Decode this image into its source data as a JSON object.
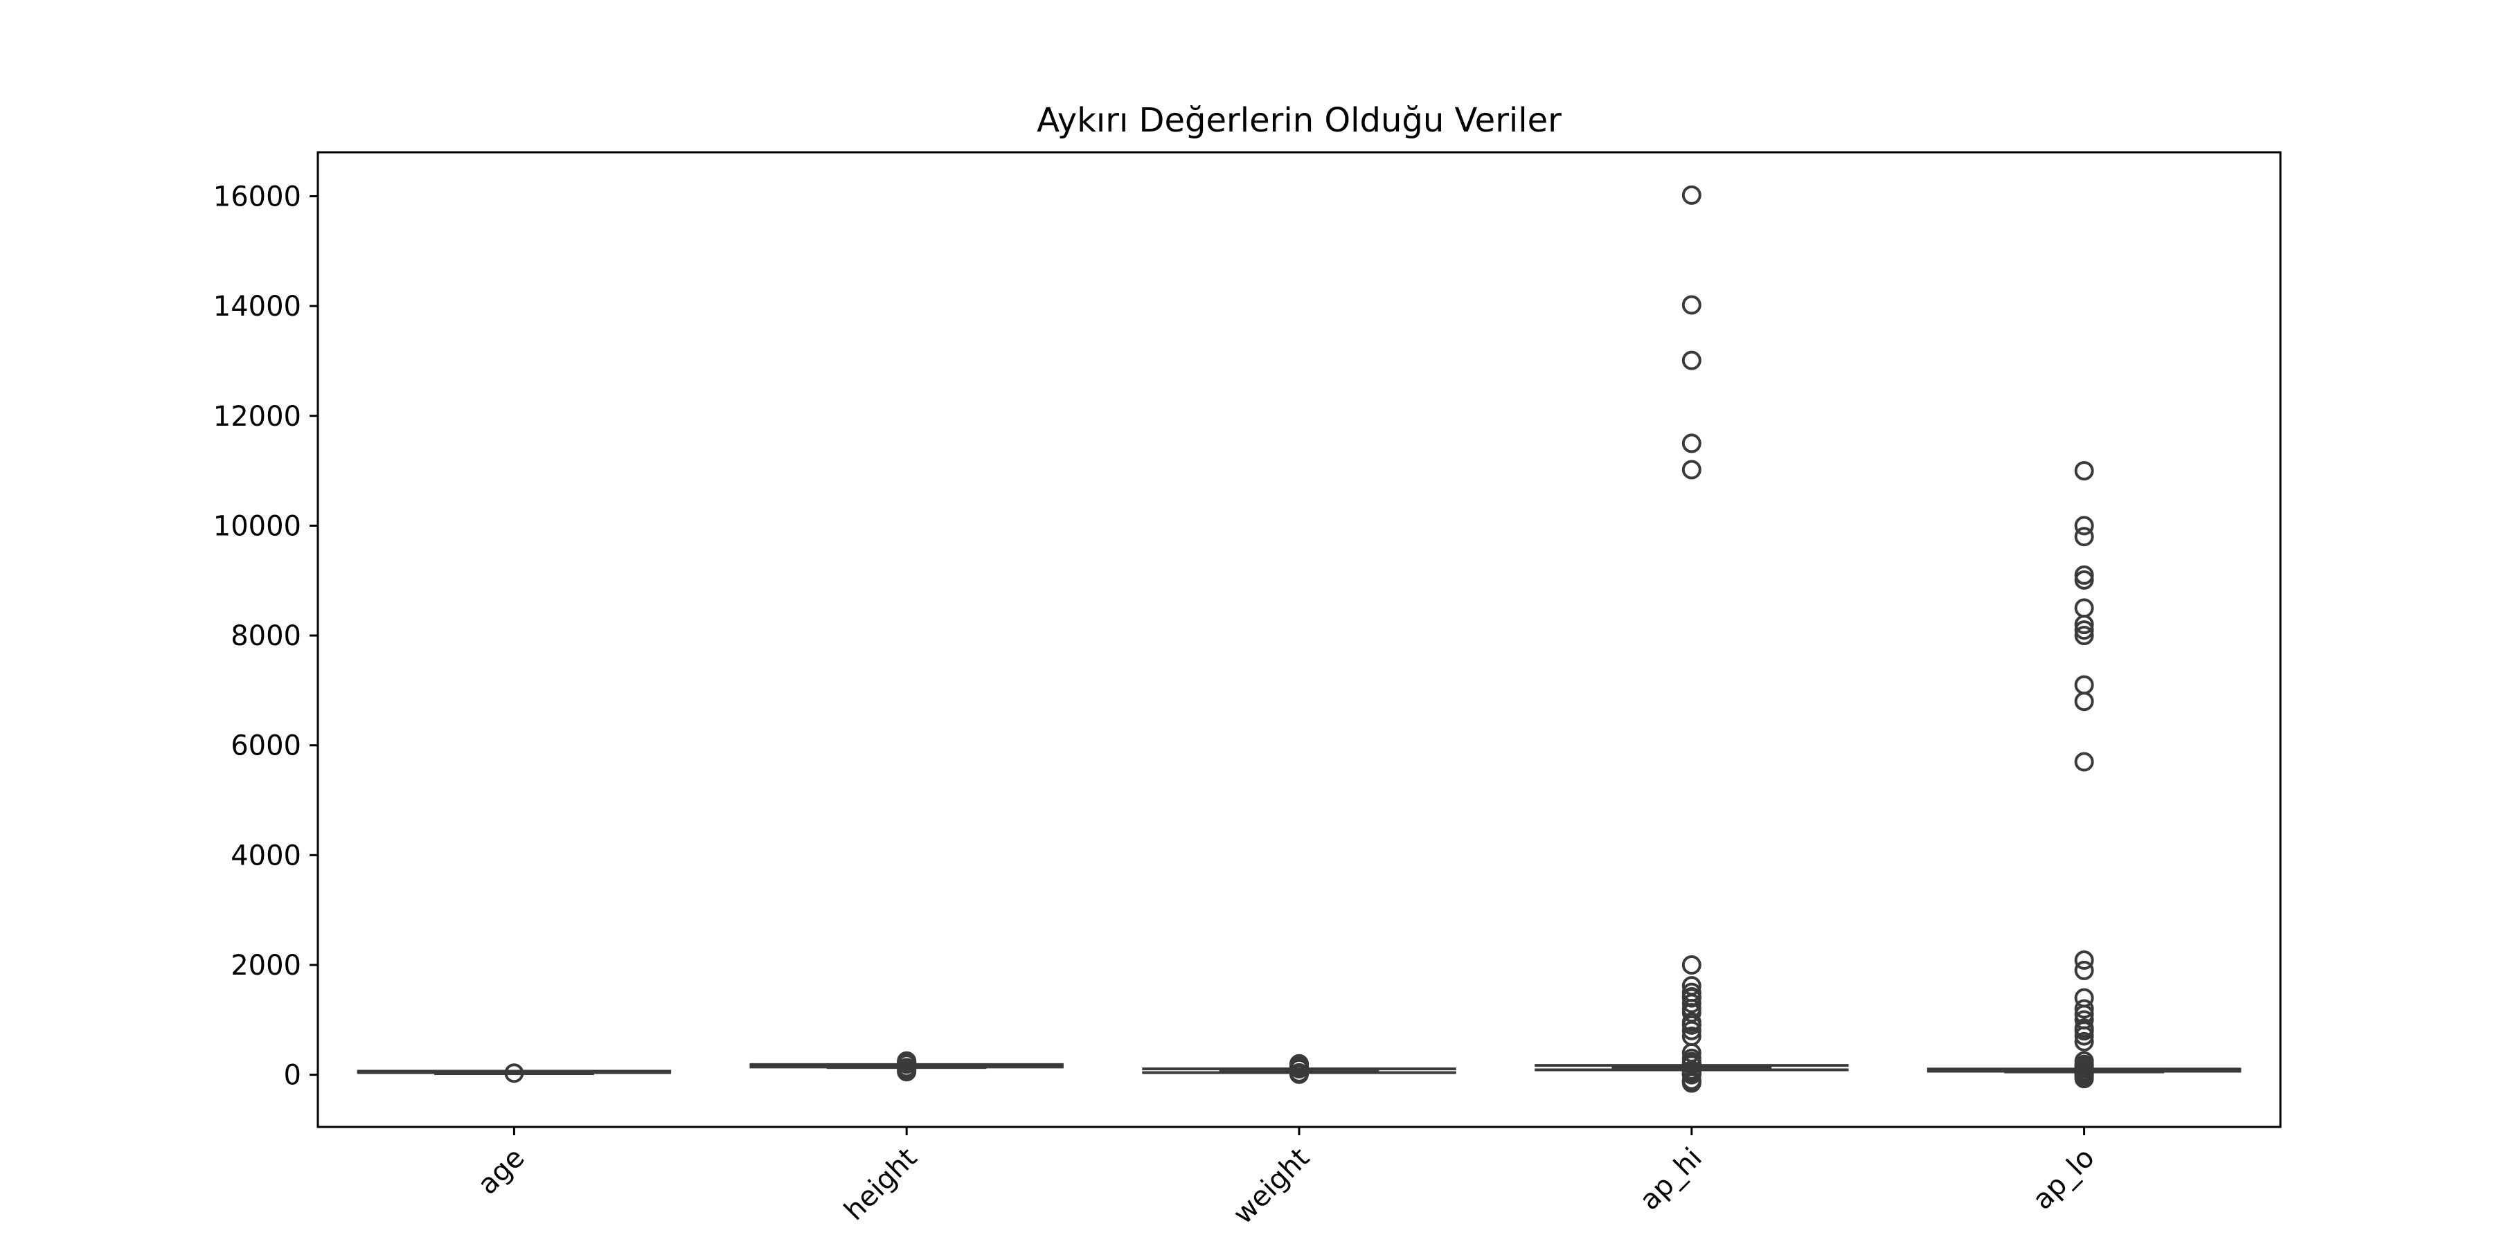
{
  "chart_data": {
    "type": "box",
    "title": "Aykırı Değerlerin Olduğu Veriler",
    "xlabel": "",
    "ylabel": "",
    "categories": [
      "age",
      "height",
      "weight",
      "ap_hi",
      "ap_lo"
    ],
    "ylim": [
      -950,
      16800
    ],
    "yticks": [
      0,
      2000,
      4000,
      6000,
      8000,
      10000,
      12000,
      14000,
      16000
    ],
    "ytick_labels": [
      "0",
      "2000",
      "4000",
      "6000",
      "8000",
      "10000",
      "12000",
      "14000",
      "16000"
    ],
    "grid": false,
    "legend": false,
    "box_color": "#3a3a3a",
    "boxes": [
      {
        "category": "age",
        "min": 39,
        "q1": 48,
        "median": 54,
        "q3": 58,
        "max": 65,
        "outliers": [
          30
        ]
      },
      {
        "category": "height",
        "min": 142,
        "q1": 159,
        "median": 165,
        "q3": 170,
        "max": 186,
        "outliers": [
          55,
          70,
          90,
          110,
          120,
          130,
          195,
          200,
          207,
          220,
          230,
          250
        ]
      },
      {
        "category": "weight",
        "min": 40,
        "q1": 65,
        "median": 72,
        "q3": 82,
        "max": 107,
        "outliers": [
          10,
          20,
          28,
          35,
          110,
          120,
          130,
          140,
          150,
          160,
          170,
          180,
          200
        ]
      },
      {
        "category": "ap_hi",
        "min": 90,
        "q1": 120,
        "median": 120,
        "q3": 140,
        "max": 170,
        "outliers": [
          -150,
          -140,
          -120,
          -115,
          -100,
          1,
          7,
          10,
          11,
          12,
          14,
          15,
          16,
          20,
          60,
          70,
          80,
          85,
          180,
          190,
          200,
          220,
          240,
          300,
          400,
          701,
          806,
          906,
          907,
          960,
          1130,
          1205,
          1300,
          1400,
          1409,
          1420,
          1500,
          1620,
          2000,
          11020,
          11500,
          13010,
          14020,
          16020
        ]
      },
      {
        "category": "ap_lo",
        "min": 65,
        "q1": 80,
        "median": 80,
        "q3": 90,
        "max": 105,
        "outliers": [
          -70,
          -20,
          0,
          1,
          10,
          20,
          30,
          40,
          45,
          50,
          55,
          60,
          110,
          120,
          130,
          150,
          170,
          190,
          250,
          602,
          708,
          800,
          850,
          1000,
          1100,
          1200,
          1400,
          1900,
          2088,
          5700,
          6800,
          7100,
          8000,
          8100,
          8200,
          8500,
          9011,
          9100,
          9800,
          10000,
          11000
        ]
      }
    ]
  }
}
